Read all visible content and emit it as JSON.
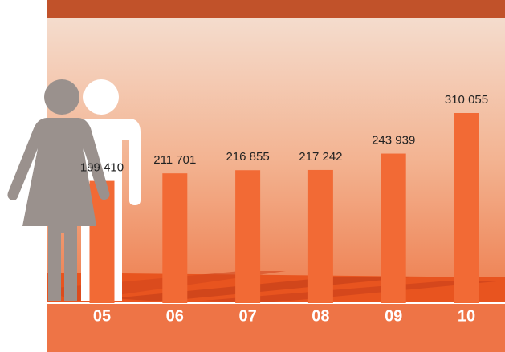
{
  "chart_data": {
    "type": "bar",
    "categories": [
      "05",
      "06",
      "07",
      "08",
      "09",
      "10"
    ],
    "values": [
      199410,
      211701,
      216855,
      217242,
      243939,
      310055
    ],
    "value_labels": [
      "199 410",
      "211 701",
      "216 855",
      "217 242",
      "243 939",
      "310 055"
    ],
    "color": "#f26a35"
  }
}
